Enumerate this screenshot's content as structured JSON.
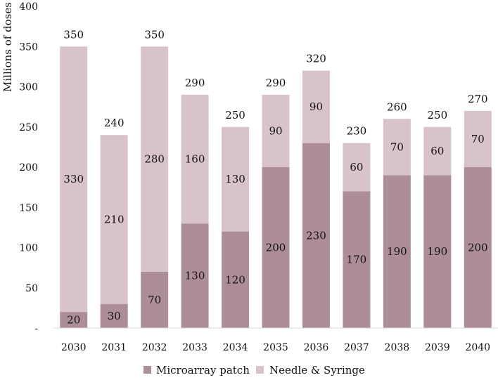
{
  "chart_data": {
    "type": "bar",
    "stacked": true,
    "ylabel": "Millions of doses",
    "ylim": [
      0,
      400
    ],
    "y_ticks": [
      {
        "value": 0,
        "label": "-"
      },
      {
        "value": 50,
        "label": "50"
      },
      {
        "value": 100,
        "label": "100"
      },
      {
        "value": 150,
        "label": "150"
      },
      {
        "value": 200,
        "label": "200"
      },
      {
        "value": 250,
        "label": "250"
      },
      {
        "value": 300,
        "label": "300"
      },
      {
        "value": 350,
        "label": "350"
      },
      {
        "value": 400,
        "label": "400"
      }
    ],
    "categories": [
      "2030",
      "2031",
      "2032",
      "2033",
      "2034",
      "2035",
      "2036",
      "2037",
      "2038",
      "2039",
      "2040"
    ],
    "series": [
      {
        "name": "Microarray patch",
        "color": "#ad8e98",
        "values": [
          20,
          30,
          70,
          130,
          120,
          200,
          230,
          170,
          190,
          190,
          200
        ]
      },
      {
        "name": "Needle & Syringe",
        "color": "#d8c3cb",
        "values": [
          330,
          210,
          280,
          160,
          130,
          90,
          90,
          60,
          70,
          60,
          70
        ]
      }
    ],
    "totals": [
      350,
      240,
      350,
      290,
      250,
      290,
      320,
      230,
      260,
      250,
      270
    ],
    "grid": false,
    "legend_position": "bottom"
  }
}
